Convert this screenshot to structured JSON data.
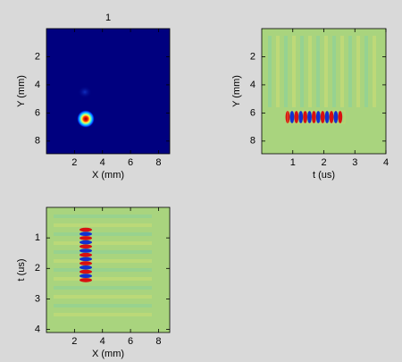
{
  "chart_data": [
    {
      "type": "image",
      "title": "1",
      "xlabel": "X (mm)",
      "ylabel": "Y (mm)",
      "xlim": [
        0,
        8.8
      ],
      "ylim": [
        0,
        8.9
      ],
      "y_reversed": true,
      "xticks": [
        2,
        4,
        6,
        8
      ],
      "yticks": [
        2,
        4,
        6,
        8
      ],
      "background": "#00007f"
    },
    {
      "type": "image",
      "xlabel": "t (us)",
      "ylabel": "Y (mm)",
      "xlim": [
        0,
        4
      ],
      "ylim": [
        0,
        8.9
      ],
      "y_reversed": true,
      "xticks": [
        1,
        2,
        3,
        4
      ],
      "yticks": [
        2,
        4,
        6,
        8
      ],
      "background": "#a9d47e"
    },
    {
      "type": "image",
      "xlabel": "X (mm)",
      "ylabel": "t (us)",
      "xlim": [
        0,
        8.8
      ],
      "ylim": [
        0,
        4.1
      ],
      "y_reversed": true,
      "xticks": [
        2,
        4,
        6,
        8
      ],
      "yticks": [
        1,
        2,
        3,
        4
      ],
      "background": "#a9d47e"
    }
  ]
}
